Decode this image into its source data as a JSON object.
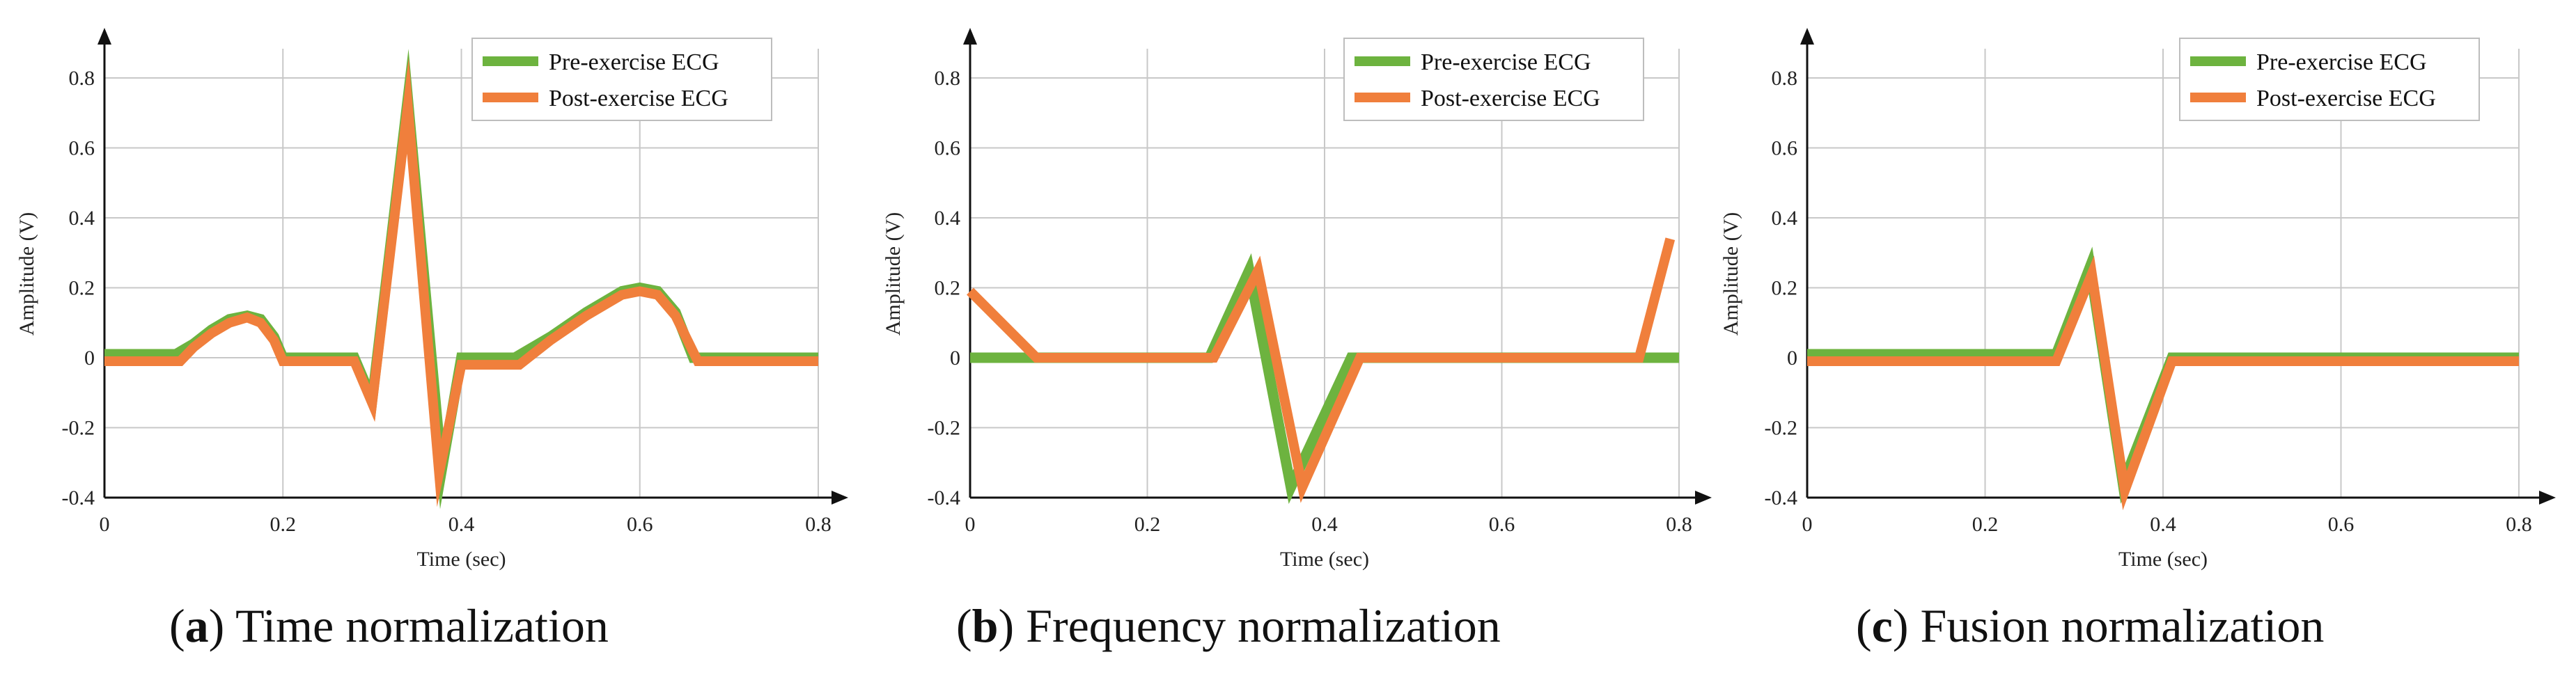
{
  "colors": {
    "pre": "#6db33f",
    "post": "#f07f3c",
    "grid": "#c8c8c8",
    "axis": "#111111"
  },
  "chart_data": [
    {
      "type": "line",
      "caption_letter": "a",
      "caption_text": "Time normalization",
      "xlabel": "Time (sec)",
      "ylabel": "Amplitude  (V)",
      "xlim": [
        0,
        0.8
      ],
      "ylim": [
        -0.4,
        0.9
      ],
      "xticks": [
        0,
        0.2,
        0.4,
        0.6,
        0.8
      ],
      "xtick_labels": [
        "0",
        "0.2",
        "0.4",
        "0.6",
        "0.8"
      ],
      "yticks": [
        -0.4,
        -0.2,
        0,
        0.2,
        0.4,
        0.6,
        0.8
      ],
      "ytick_labels": [
        "-0.4",
        "-0.2",
        "0",
        "0.2",
        "0.4",
        "0.6",
        "0.8"
      ],
      "grid": true,
      "legend_position": "top-right",
      "series": [
        {
          "name": "Pre-exercise ECG",
          "color": "#6db33f",
          "x": [
            0,
            0.08,
            0.1,
            0.12,
            0.14,
            0.16,
            0.175,
            0.19,
            0.2,
            0.28,
            0.3,
            0.34,
            0.378,
            0.4,
            0.46,
            0.5,
            0.54,
            0.58,
            0.6,
            0.62,
            0.64,
            0.66,
            0.8
          ],
          "y": [
            0.01,
            0.01,
            0.04,
            0.08,
            0.11,
            0.12,
            0.11,
            0.06,
            0,
            0,
            -0.12,
            0.74,
            -0.32,
            0,
            0,
            0.06,
            0.13,
            0.19,
            0.2,
            0.19,
            0.13,
            0,
            0
          ]
        },
        {
          "name": "Post-exercise ECG",
          "color": "#f07f3c",
          "x": [
            0,
            0.085,
            0.1,
            0.12,
            0.14,
            0.16,
            0.175,
            0.19,
            0.2,
            0.28,
            0.3,
            0.34,
            0.375,
            0.4,
            0.465,
            0.5,
            0.54,
            0.58,
            0.6,
            0.62,
            0.64,
            0.665,
            0.8
          ],
          "y": [
            -0.01,
            -0.01,
            0.03,
            0.07,
            0.1,
            0.115,
            0.1,
            0.05,
            -0.01,
            -0.01,
            -0.13,
            0.72,
            -0.33,
            -0.02,
            -0.02,
            0.05,
            0.12,
            0.18,
            0.19,
            0.18,
            0.12,
            -0.01,
            -0.01
          ]
        }
      ]
    },
    {
      "type": "line",
      "caption_letter": "b",
      "caption_text": "Frequency normalization",
      "xlabel": "Time (sec)",
      "ylabel": "Amplitude  (V)",
      "xlim": [
        0,
        0.8
      ],
      "ylim": [
        -0.4,
        0.9
      ],
      "xticks": [
        0,
        0.2,
        0.4,
        0.6,
        0.8
      ],
      "xtick_labels": [
        "0",
        "0.2",
        "0.4",
        "0.6",
        "0.8"
      ],
      "yticks": [
        -0.4,
        -0.2,
        0,
        0.2,
        0.4,
        0.6,
        0.8
      ],
      "ytick_labels": [
        "-0.4",
        "-0.2",
        "0",
        "0.2",
        "0.4",
        "0.6",
        "0.8"
      ],
      "grid": true,
      "legend_position": "top-right",
      "series": [
        {
          "name": "Pre-exercise ECG",
          "color": "#6db33f",
          "x": [
            0,
            0.27,
            0.315,
            0.362,
            0.43,
            0.8
          ],
          "y": [
            0,
            0,
            0.25,
            -0.37,
            0,
            0
          ]
        },
        {
          "name": "Post-exercise ECG",
          "color": "#f07f3c",
          "x": [
            0,
            0.075,
            0.275,
            0.325,
            0.375,
            0.44,
            0.755,
            0.79
          ],
          "y": [
            0.19,
            0,
            0,
            0.25,
            -0.37,
            0,
            0,
            0.34
          ]
        }
      ]
    },
    {
      "type": "line",
      "caption_letter": "c",
      "caption_text": "Fusion normalization",
      "xlabel": "Time (sec)",
      "ylabel": "Amplitude  (V)",
      "xlim": [
        0,
        0.8
      ],
      "ylim": [
        -0.4,
        0.9
      ],
      "xticks": [
        0,
        0.2,
        0.4,
        0.6,
        0.8
      ],
      "xtick_labels": [
        "0",
        "0.2",
        "0.4",
        "0.6",
        "0.8"
      ],
      "yticks": [
        -0.4,
        -0.2,
        0,
        0.2,
        0.4,
        0.6,
        0.8
      ],
      "ytick_labels": [
        "-0.4",
        "-0.2",
        "0",
        "0.2",
        "0.4",
        "0.6",
        "0.8"
      ],
      "grid": true,
      "legend_position": "top-right",
      "series": [
        {
          "name": "Pre-exercise ECG",
          "color": "#6db33f",
          "x": [
            0,
            0.28,
            0.318,
            0.355,
            0.41,
            0.8
          ],
          "y": [
            0.01,
            0.01,
            0.26,
            -0.36,
            0,
            0
          ]
        },
        {
          "name": "Post-exercise ECG",
          "color": "#f07f3c",
          "x": [
            0,
            0.28,
            0.32,
            0.357,
            0.41,
            0.8
          ],
          "y": [
            -0.01,
            -0.01,
            0.24,
            -0.38,
            -0.01,
            -0.01
          ]
        }
      ]
    }
  ]
}
